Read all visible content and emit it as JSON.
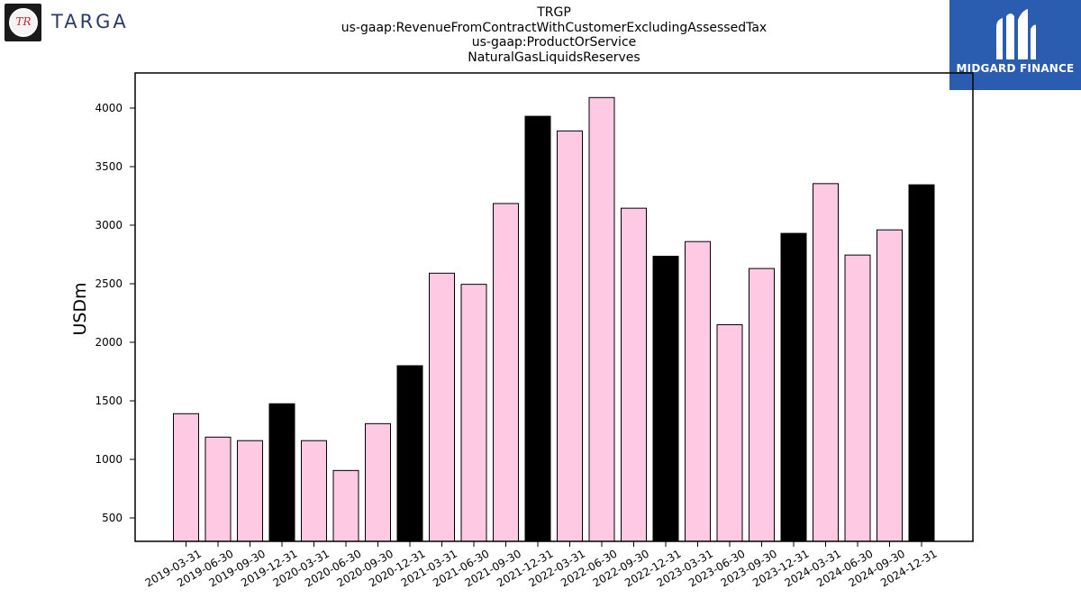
{
  "header": {
    "title_lines": [
      "TRGP",
      "us-gaap:RevenueFromContractWithCustomerExcludingAssessedTax",
      "us-gaap:ProductOrService",
      "NaturalGasLiquidsReserves"
    ],
    "logo_left": {
      "badge": "TR",
      "wordmark": "TARGA"
    },
    "logo_right": {
      "name": "MIDGARD FINANCE",
      "color": "#2a5db0"
    }
  },
  "chart_data": {
    "type": "bar",
    "title": "TRGP\nus-gaap:RevenueFromContractWithCustomerExcludingAssessedTax\nus-gaap:ProductOrService\nNaturalGasLiquidsReserves",
    "xlabel": "",
    "ylabel": "USDm",
    "ylim": [
      300,
      4300
    ],
    "yticks": [
      500,
      1000,
      1500,
      2000,
      2500,
      3000,
      3500,
      4000
    ],
    "grid": false,
    "categories": [
      "2019-03-31",
      "2019-06-30",
      "2019-09-30",
      "2019-12-31",
      "2020-03-31",
      "2020-06-30",
      "2020-09-30",
      "2020-12-31",
      "2021-03-31",
      "2021-06-30",
      "2021-09-30",
      "2021-12-31",
      "2022-03-31",
      "2022-06-30",
      "2022-09-30",
      "2022-12-31",
      "2023-03-31",
      "2023-06-30",
      "2023-09-30",
      "2023-12-31",
      "2024-03-31",
      "2024-06-30",
      "2024-09-30",
      "2024-12-31"
    ],
    "values": [
      1390,
      1190,
      1160,
      1475,
      1160,
      905,
      1305,
      1800,
      2590,
      2495,
      3185,
      3930,
      3805,
      4090,
      3145,
      2735,
      2860,
      2150,
      2630,
      2930,
      3355,
      2745,
      2960,
      3345
    ],
    "colors": {
      "quarter": "#fdc9e3",
      "year_end": "#000000",
      "edge": "#000000"
    }
  }
}
